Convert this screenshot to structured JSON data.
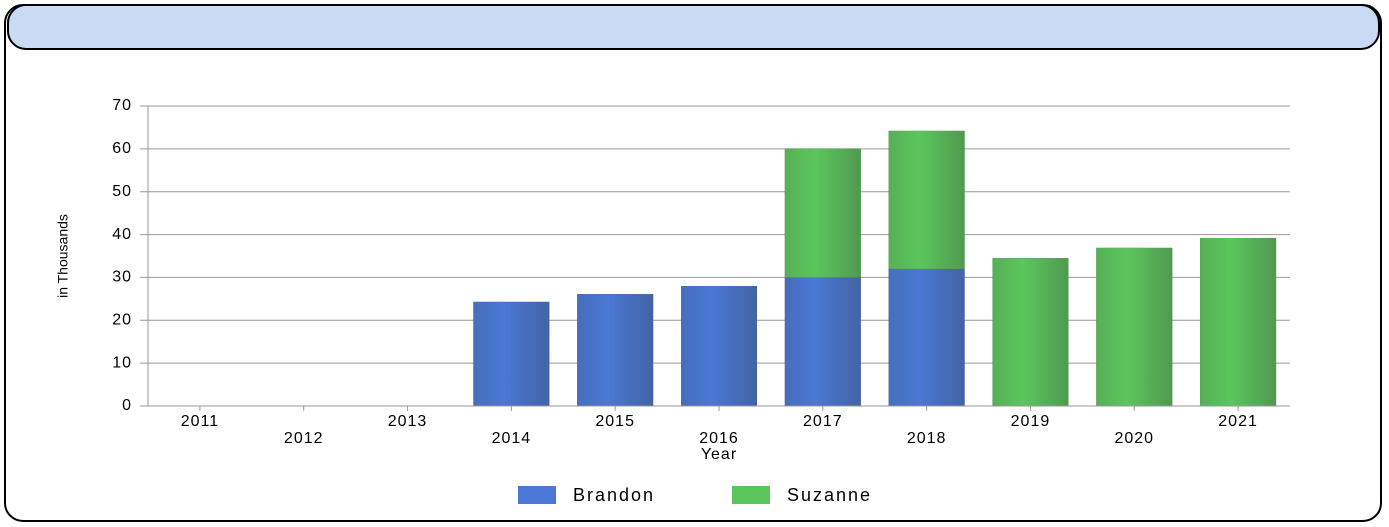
{
  "chart_data": {
    "type": "stacked_bar",
    "x_label": "Year",
    "y_label": "in Thousands",
    "categories": [
      "2011",
      "2012",
      "2013",
      "2014",
      "2015",
      "2016",
      "2017",
      "2018",
      "2019",
      "2020",
      "2021"
    ],
    "series": [
      {
        "name": "Brandon",
        "color": "#4a78d4",
        "values": [
          null,
          null,
          null,
          24.3,
          26.1,
          28,
          30,
          32,
          null,
          null,
          null
        ]
      },
      {
        "name": "Suzanne",
        "color": "#5cc65c",
        "values": [
          null,
          null,
          null,
          null,
          null,
          null,
          30,
          32.2,
          34.5,
          36.9,
          39.2
        ]
      }
    ],
    "ylim": [
      0,
      70
    ],
    "yticks": [
      0,
      10,
      20,
      30,
      40,
      50,
      60,
      70
    ],
    "grid": true,
    "legend": "bottom"
  }
}
